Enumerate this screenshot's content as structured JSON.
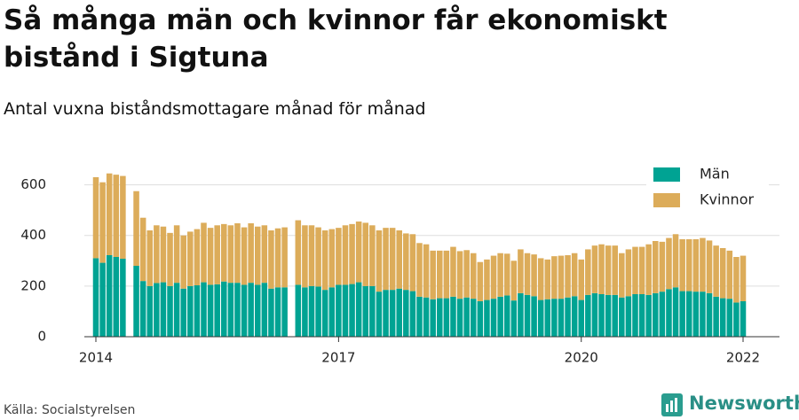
{
  "chart_data": {
    "type": "stacked-bar",
    "title": "Så många män och kvinnor får ekonomiskt bistånd i Sigtuna",
    "subtitle": "Antal vuxna biståndsmottagare månad för månad",
    "source": "Källa: Socialstyrelsen",
    "logo": "Newsworthy",
    "categories": [
      "2014",
      null,
      null,
      null,
      null,
      null,
      null,
      null,
      null,
      null,
      null,
      null,
      null,
      null,
      null,
      null,
      null,
      null,
      null,
      null,
      null,
      null,
      null,
      null,
      null,
      null,
      null,
      null,
      null,
      null,
      null,
      null,
      null,
      null,
      null,
      null,
      "2017",
      null,
      null,
      null,
      null,
      null,
      null,
      null,
      null,
      null,
      null,
      null,
      null,
      null,
      null,
      null,
      null,
      null,
      null,
      null,
      null,
      null,
      null,
      null,
      null,
      null,
      null,
      null,
      null,
      null,
      null,
      null,
      null,
      null,
      null,
      null,
      "2020",
      null,
      null,
      null,
      null,
      null,
      null,
      null,
      null,
      null,
      null,
      null,
      null,
      null,
      null,
      null,
      null,
      null,
      null,
      null,
      null,
      null,
      null,
      null,
      "2022"
    ],
    "series": [
      {
        "name": "Män",
        "color": "#00a393",
        "values": [
          310,
          292,
          322,
          315,
          308,
          null,
          280,
          220,
          200,
          212,
          215,
          200,
          213,
          190,
          200,
          203,
          215,
          205,
          207,
          218,
          213,
          213,
          205,
          213,
          205,
          213,
          190,
          195,
          195,
          null,
          205,
          195,
          200,
          198,
          185,
          195,
          205,
          205,
          208,
          215,
          200,
          200,
          178,
          185,
          185,
          190,
          185,
          180,
          158,
          155,
          148,
          152,
          152,
          158,
          150,
          155,
          150,
          140,
          145,
          150,
          158,
          163,
          143,
          172,
          165,
          160,
          145,
          148,
          150,
          150,
          155,
          160,
          145,
          165,
          172,
          168,
          165,
          165,
          155,
          160,
          168,
          168,
          165,
          172,
          178,
          188,
          195,
          180,
          180,
          178,
          178,
          172,
          158,
          152,
          150,
          135,
          140
        ]
      },
      {
        "name": "Kvinnor",
        "color": "#dcac5a",
        "values": [
          320,
          318,
          323,
          325,
          327,
          null,
          295,
          250,
          220,
          228,
          220,
          210,
          227,
          210,
          215,
          222,
          235,
          225,
          233,
          227,
          227,
          235,
          227,
          235,
          230,
          227,
          230,
          233,
          237,
          null,
          255,
          245,
          240,
          234,
          235,
          230,
          225,
          235,
          237,
          240,
          250,
          240,
          242,
          245,
          245,
          230,
          223,
          225,
          212,
          210,
          192,
          188,
          188,
          197,
          188,
          187,
          180,
          155,
          160,
          170,
          172,
          165,
          157,
          173,
          165,
          165,
          165,
          157,
          168,
          170,
          167,
          170,
          160,
          180,
          188,
          197,
          195,
          195,
          175,
          185,
          187,
          187,
          200,
          206,
          197,
          202,
          210,
          205,
          205,
          207,
          212,
          208,
          202,
          198,
          190,
          180,
          180
        ]
      }
    ],
    "ylim": [
      0,
      665
    ],
    "yticks": [
      0,
      200,
      400,
      600
    ],
    "grid": true,
    "legend": "top-right"
  }
}
